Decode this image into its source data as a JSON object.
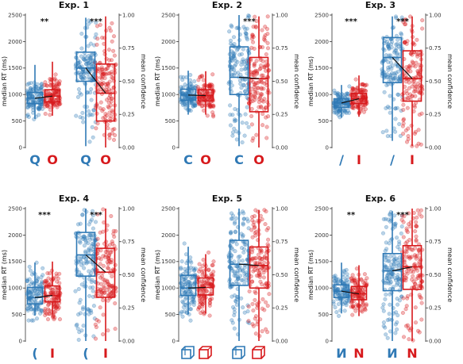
{
  "colors": {
    "blue": "#2f79b5",
    "red": "#d7191c"
  },
  "chart_data": [
    {
      "type": "box",
      "title": "Exp. 1",
      "ylabel_left": "median RT (ms)",
      "ylabel_right": "mean confidence",
      "rt_ylim": [
        0,
        2500
      ],
      "rt_ticks": [
        "0",
        "500",
        "1000",
        "1500",
        "2000",
        "2500"
      ],
      "conf_ylim": [
        0,
        1
      ],
      "conf_ticks": [
        "0.00",
        "0.25",
        "0.50",
        "0.75",
        "1.00"
      ],
      "stimuli": {
        "left": "Q",
        "right": "O",
        "kind": "letter"
      },
      "significance": {
        "rt": "**",
        "confidence": "***"
      },
      "rt": {
        "blue": {
          "q1": 830,
          "median": 930,
          "q3": 1040,
          "wlo": 540,
          "whi": 1560
        },
        "red": {
          "q1": 860,
          "median": 970,
          "q3": 1090,
          "wlo": 600,
          "whi": 1620
        }
      },
      "confidence": {
        "blue": {
          "q1": 0.5,
          "median": 0.6,
          "q3": 0.72,
          "wlo": 0.01,
          "whi": 0.98
        },
        "red": {
          "q1": 0.2,
          "median": 0.41,
          "q3": 0.63,
          "wlo": 0.0,
          "whi": 0.99
        }
      }
    },
    {
      "type": "box",
      "title": "Exp. 2",
      "ylabel_left": "median RT (ms)",
      "ylabel_right": "mean confidence",
      "rt_ylim": [
        0,
        2500
      ],
      "rt_ticks": [
        "0",
        "500",
        "1000",
        "1500",
        "2000",
        "2500"
      ],
      "conf_ylim": [
        0,
        1
      ],
      "conf_ticks": [
        "0.00",
        "0.25",
        "0.50",
        "0.75",
        "1.00"
      ],
      "stimuli": {
        "left": "C",
        "right": "O",
        "kind": "letter"
      },
      "significance": {
        "rt": "",
        "confidence": "***"
      },
      "rt": {
        "blue": {
          "q1": 890,
          "median": 990,
          "q3": 1100,
          "wlo": 620,
          "whi": 1450
        },
        "red": {
          "q1": 880,
          "median": 980,
          "q3": 1090,
          "wlo": 620,
          "whi": 1440
        }
      },
      "confidence": {
        "blue": {
          "q1": 0.4,
          "median": 0.53,
          "q3": 0.76,
          "wlo": 0.01,
          "whi": 1.0
        },
        "red": {
          "q1": 0.27,
          "median": 0.52,
          "q3": 0.68,
          "wlo": 0.0,
          "whi": 0.99
        }
      }
    },
    {
      "type": "box",
      "title": "Exp. 3",
      "ylabel_left": "median RT (ms)",
      "ylabel_right": "mean confidence",
      "rt_ylim": [
        0,
        2500
      ],
      "rt_ticks": [
        "0",
        "500",
        "1000",
        "1500",
        "2000",
        "2500"
      ],
      "conf_ylim": [
        0,
        1
      ],
      "conf_ticks": [
        "0.00",
        "0.25",
        "0.50",
        "0.75",
        "1.00"
      ],
      "stimuli": {
        "left": "/",
        "right": "I",
        "kind": "letter"
      },
      "significance": {
        "rt": "***",
        "confidence": "***"
      },
      "rt": {
        "blue": {
          "q1": 760,
          "median": 840,
          "q3": 920,
          "wlo": 560,
          "whi": 1180
        },
        "red": {
          "q1": 830,
          "median": 920,
          "q3": 1020,
          "wlo": 580,
          "whi": 1360
        }
      },
      "confidence": {
        "blue": {
          "q1": 0.49,
          "median": 0.68,
          "q3": 0.83,
          "wlo": 0.05,
          "whi": 0.99
        },
        "red": {
          "q1": 0.35,
          "median": 0.52,
          "q3": 0.73,
          "wlo": 0.01,
          "whi": 0.99
        }
      }
    },
    {
      "type": "box",
      "title": "Exp. 4",
      "ylabel_left": "median RT (ms)",
      "ylabel_right": "mean confidence",
      "rt_ylim": [
        0,
        2500
      ],
      "rt_ticks": [
        "0",
        "500",
        "1000",
        "1500",
        "2000",
        "2500"
      ],
      "conf_ylim": [
        0,
        1
      ],
      "conf_ticks": [
        "0.00",
        "0.25",
        "0.50",
        "0.75",
        "1.00"
      ],
      "stimuli": {
        "left": "(",
        "right": "I",
        "kind": "letter"
      },
      "significance": {
        "rt": "***",
        "confidence": "***"
      },
      "rt": {
        "blue": {
          "q1": 700,
          "median": 820,
          "q3": 1010,
          "wlo": 480,
          "whi": 1480
        },
        "red": {
          "q1": 740,
          "median": 860,
          "q3": 1040,
          "wlo": 500,
          "whi": 1500
        }
      },
      "confidence": {
        "blue": {
          "q1": 0.49,
          "median": 0.65,
          "q3": 0.82,
          "wlo": 0.0,
          "whi": 1.0
        },
        "red": {
          "q1": 0.33,
          "median": 0.52,
          "q3": 0.7,
          "wlo": 0.0,
          "whi": 1.0
        }
      }
    },
    {
      "type": "box",
      "title": "Exp. 5",
      "ylabel_left": "median RT (ms)",
      "ylabel_right": "mean confidence",
      "rt_ylim": [
        0,
        2500
      ],
      "rt_ticks": [
        "0",
        "500",
        "1000",
        "1500",
        "2000",
        "2500"
      ],
      "conf_ylim": [
        0,
        1
      ],
      "conf_ticks": [
        "0.00",
        "0.25",
        "0.50",
        "0.75",
        "1.00"
      ],
      "stimuli": {
        "left": "open-cube",
        "right": "closed-cube",
        "kind": "cube"
      },
      "significance": {
        "rt": "",
        "confidence": ""
      },
      "rt": {
        "blue": {
          "q1": 860,
          "median": 1000,
          "q3": 1240,
          "wlo": 500,
          "whi": 1780
        },
        "red": {
          "q1": 870,
          "median": 1010,
          "q3": 1190,
          "wlo": 520,
          "whi": 1640
        }
      },
      "confidence": {
        "blue": {
          "q1": 0.42,
          "median": 0.58,
          "q3": 0.76,
          "wlo": 0.0,
          "whi": 1.0
        },
        "red": {
          "q1": 0.4,
          "median": 0.57,
          "q3": 0.71,
          "wlo": 0.0,
          "whi": 0.99
        }
      }
    },
    {
      "type": "box",
      "title": "Exp. 6",
      "ylabel_left": "median RT (ms)",
      "ylabel_right": "mean confidence",
      "rt_ylim": [
        0,
        2500
      ],
      "rt_ticks": [
        "0",
        "500",
        "1000",
        "1500",
        "2000",
        "2500"
      ],
      "conf_ylim": [
        0,
        1
      ],
      "conf_ticks": [
        "0.00",
        "0.25",
        "0.50",
        "0.75",
        "1.00"
      ],
      "stimuli": {
        "left": "И",
        "right": "N",
        "kind": "letter"
      },
      "significance": {
        "rt": "**",
        "confidence": "***"
      },
      "rt": {
        "blue": {
          "q1": 820,
          "median": 940,
          "q3": 1060,
          "wlo": 520,
          "whi": 1480
        },
        "red": {
          "q1": 780,
          "median": 890,
          "q3": 1030,
          "wlo": 470,
          "whi": 1430
        }
      },
      "confidence": {
        "blue": {
          "q1": 0.38,
          "median": 0.53,
          "q3": 0.66,
          "wlo": 0.0,
          "whi": 0.98
        },
        "red": {
          "q1": 0.39,
          "median": 0.56,
          "q3": 0.72,
          "wlo": 0.0,
          "whi": 1.0
        }
      }
    }
  ]
}
